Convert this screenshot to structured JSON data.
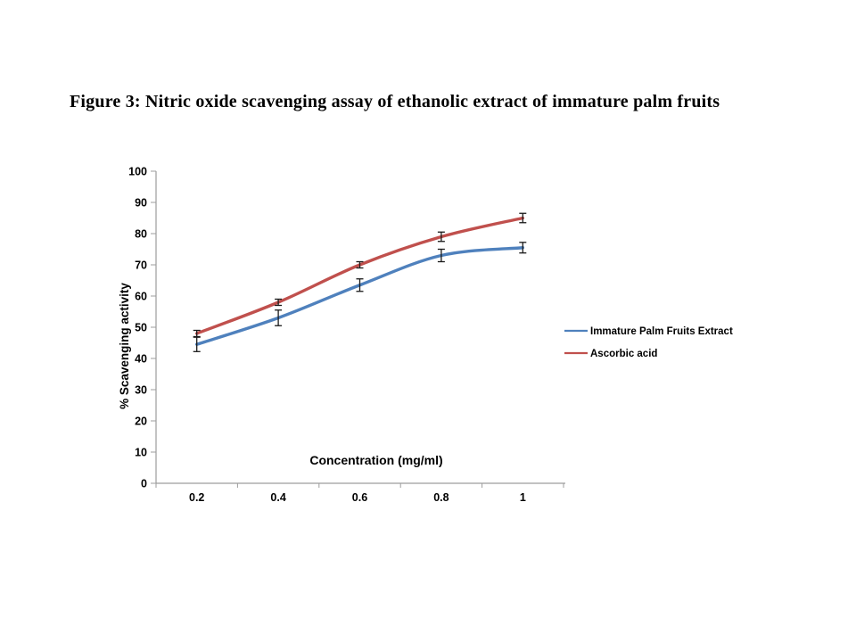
{
  "figure_caption": "Figure 3: Nitric oxide scavenging assay of ethanolic extract of immature palm fruits",
  "chart_data": {
    "type": "line",
    "x": [
      0.2,
      0.4,
      0.6,
      0.8,
      1
    ],
    "x_tick_labels": [
      "0.2",
      "0.4",
      "0.6",
      "0.8",
      "1"
    ],
    "series": [
      {
        "name": "Immature Palm Fruits Extract",
        "values": [
          44.5,
          53,
          63.5,
          73,
          75.5
        ],
        "errors": [
          2.3,
          2.5,
          2,
          2,
          1.7
        ],
        "color": "#4F81BD"
      },
      {
        "name": "Ascorbic acid",
        "values": [
          48,
          58,
          70,
          79,
          85
        ],
        "errors": [
          1,
          1,
          1,
          1.5,
          1.5
        ],
        "color": "#C0504D"
      }
    ],
    "xlabel": "Concentration (mg/ml)",
    "ylabel": "% Scavenging activity",
    "ylim": [
      0,
      100
    ],
    "ytick_step": 10,
    "grid": false,
    "legend_position": "right",
    "axis_color": "#9d9d9d",
    "error_bar_color": "#1a1a1a",
    "text_color": "#000000",
    "background": "#ffffff"
  }
}
